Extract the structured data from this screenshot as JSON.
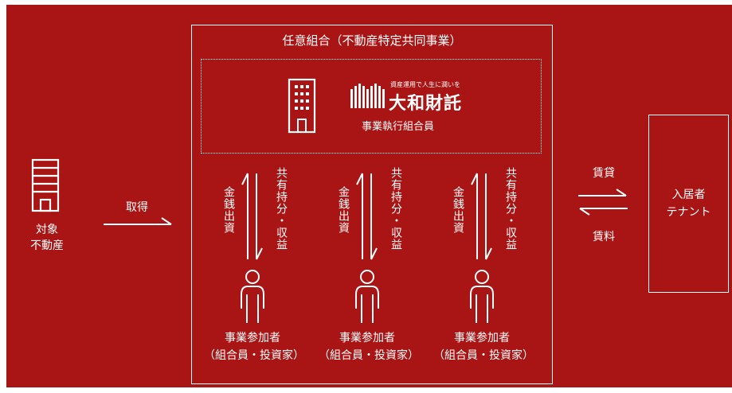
{
  "colors": {
    "background": "#a91414",
    "foreground": "#ffffff"
  },
  "property": {
    "label_line1": "対象",
    "label_line2": "不動産",
    "icon": "building-icon"
  },
  "acquire": {
    "label": "取得"
  },
  "partnership": {
    "title": "任意組合（不動産特定共同事業）"
  },
  "executor": {
    "icon": "office-building-icon",
    "brand_tagline": "資産運用で人生に潤いを",
    "brand_name": "大和財託",
    "role": "事業執行組合員"
  },
  "participants": [
    {
      "invest_label": "金銭出資",
      "return_label": "共有持分・収益",
      "name": "事業参加者",
      "role": "（組合員・投資家）"
    },
    {
      "invest_label": "金銭出資",
      "return_label": "共有持分・収益",
      "name": "事業参加者",
      "role": "（組合員・投資家）"
    },
    {
      "invest_label": "金銭出資",
      "return_label": "共有持分・収益",
      "name": "事業参加者",
      "role": "（組合員・投資家）"
    }
  ],
  "lease": {
    "top_label": "賃貸",
    "bottom_label": "賃料"
  },
  "tenant": {
    "label_line1": "入居者",
    "label_line2": "テナント"
  }
}
